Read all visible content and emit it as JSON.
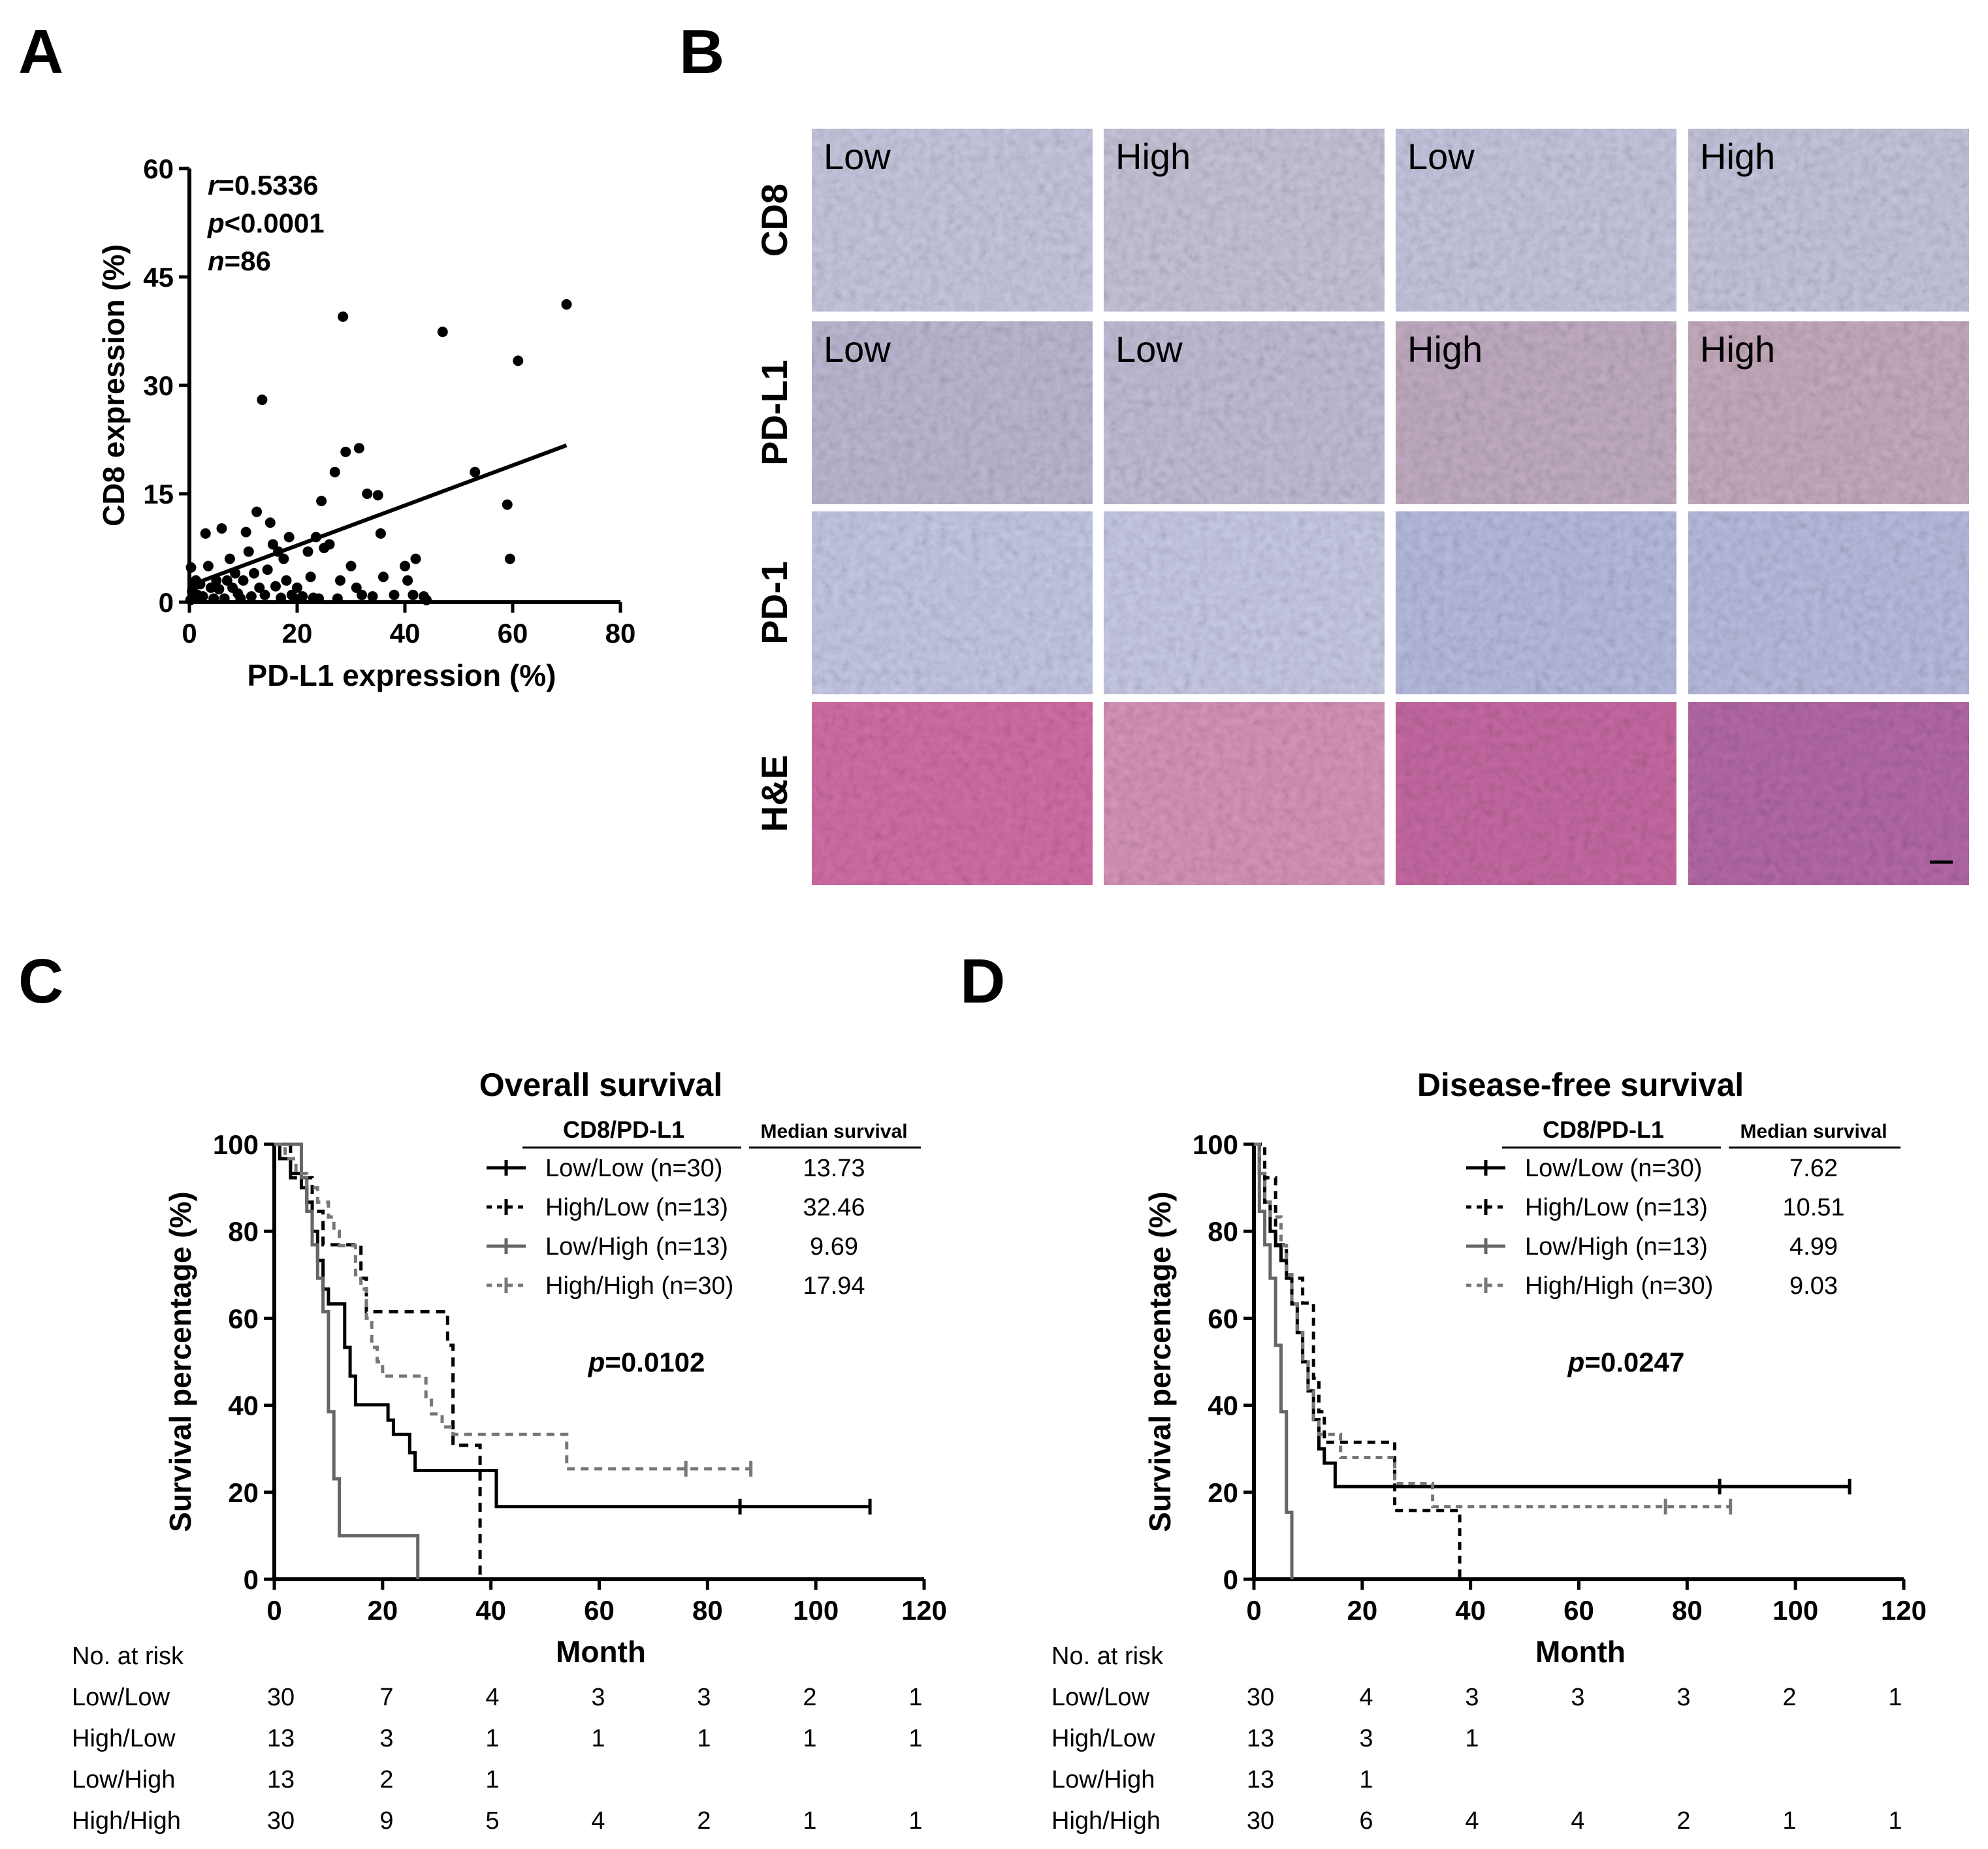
{
  "panels": {
    "a": "A",
    "b": "B",
    "c": "C",
    "d": "D"
  },
  "panel_b": {
    "rows": [
      "CD8",
      "PD-L1",
      "PD-1",
      "H&E"
    ],
    "tile_labels": [
      [
        "Low",
        "High",
        "Low",
        "High"
      ],
      [
        "Low",
        "Low",
        "High",
        "High"
      ]
    ]
  },
  "chart_data": [
    {
      "id": "A",
      "type": "scatter",
      "xlabel": "PD-L1 expression (%)",
      "ylabel": "CD8 expression (%)",
      "xlim": [
        0,
        80
      ],
      "ylim": [
        0,
        60
      ],
      "xticks": [
        "0",
        "20",
        "40",
        "60",
        "80"
      ],
      "yticks": [
        "0",
        "15",
        "30",
        "45",
        "60"
      ],
      "stats": [
        {
          "sym": "r",
          "rest": "=0.5336"
        },
        {
          "sym": "p",
          "rest": "<0.0001"
        },
        {
          "sym": "n",
          "rest": "=86"
        }
      ],
      "points": [
        [
          0.2,
          0.3
        ],
        [
          0.5,
          1.5
        ],
        [
          0.8,
          2.2
        ],
        [
          0.3,
          4.8
        ],
        [
          1,
          0.5
        ],
        [
          1.2,
          3
        ],
        [
          1.5,
          1
        ],
        [
          2,
          2.5
        ],
        [
          2.5,
          0.8
        ],
        [
          3,
          9.5
        ],
        [
          3.5,
          5
        ],
        [
          4,
          2
        ],
        [
          4.5,
          0.5
        ],
        [
          5,
          3
        ],
        [
          5.5,
          1.8
        ],
        [
          6,
          10.2
        ],
        [
          6.5,
          0.5
        ],
        [
          7,
          3
        ],
        [
          7.5,
          6
        ],
        [
          8,
          2
        ],
        [
          8.5,
          4
        ],
        [
          9,
          1.2
        ],
        [
          9.5,
          0.5
        ],
        [
          10,
          3
        ],
        [
          10.5,
          9.7
        ],
        [
          11,
          7
        ],
        [
          11.5,
          0.8
        ],
        [
          12,
          4
        ],
        [
          12.5,
          12.5
        ],
        [
          13,
          2
        ],
        [
          13.5,
          28
        ],
        [
          14,
          1
        ],
        [
          14.5,
          4.5
        ],
        [
          15,
          11
        ],
        [
          15.5,
          8
        ],
        [
          16,
          2.2
        ],
        [
          16.5,
          7
        ],
        [
          17,
          0.6
        ],
        [
          17.5,
          6
        ],
        [
          18,
          3
        ],
        [
          18.5,
          9
        ],
        [
          19,
          1
        ],
        [
          19.5,
          0.5
        ],
        [
          20,
          2
        ],
        [
          21,
          0.8
        ],
        [
          22,
          7
        ],
        [
          22.5,
          3.5
        ],
        [
          23,
          0.6
        ],
        [
          23.5,
          9
        ],
        [
          24,
          0.5
        ],
        [
          24.5,
          14
        ],
        [
          25,
          7.5
        ],
        [
          26,
          8
        ],
        [
          27,
          18
        ],
        [
          27.5,
          0.5
        ],
        [
          28,
          3
        ],
        [
          28.5,
          39.5
        ],
        [
          29,
          20.8
        ],
        [
          30,
          5
        ],
        [
          31,
          2
        ],
        [
          31.5,
          21.3
        ],
        [
          32,
          1
        ],
        [
          33,
          15
        ],
        [
          34,
          0.8
        ],
        [
          35,
          14.8
        ],
        [
          35.5,
          9.5
        ],
        [
          36,
          3.5
        ],
        [
          38,
          1
        ],
        [
          40,
          5
        ],
        [
          40.5,
          3
        ],
        [
          41.5,
          1
        ],
        [
          42,
          6
        ],
        [
          43.5,
          0.8
        ],
        [
          44,
          0.3
        ],
        [
          47,
          37.4
        ],
        [
          53,
          18
        ],
        [
          59,
          13.5
        ],
        [
          59.5,
          6
        ],
        [
          61,
          33.4
        ],
        [
          70,
          41.2
        ]
      ],
      "fit": {
        "x": [
          0,
          70
        ],
        "y": [
          2.3,
          21.7
        ]
      }
    },
    {
      "id": "C",
      "type": "line",
      "title": "Overall survival",
      "xlabel": "Month",
      "ylabel": "Survival percentage (%)",
      "xlim": [
        0,
        120
      ],
      "ylim": [
        0,
        100
      ],
      "xticks": [
        "0",
        "20",
        "40",
        "60",
        "80",
        "100",
        "120"
      ],
      "yticks": [
        "0",
        "20",
        "40",
        "60",
        "80",
        "100"
      ],
      "legend_header": "CD8/PD-L1",
      "median_header": "Median survival",
      "p_sym": "p",
      "p_rest": "=0.0102",
      "series": [
        {
          "name": "Low/Low (n=30)",
          "median": "13.73",
          "color": "#000000",
          "dash": "",
          "steps": [
            [
              0,
              100
            ],
            [
              1,
              96.7
            ],
            [
              3,
              93.3
            ],
            [
              5,
              90
            ],
            [
              6,
              86.7
            ],
            [
              7,
              80
            ],
            [
              8,
              73.3
            ],
            [
              9,
              66.7
            ],
            [
              10,
              63.3
            ],
            [
              13,
              53.3
            ],
            [
              14,
              46.7
            ],
            [
              15,
              40.1
            ],
            [
              21,
              36.6
            ],
            [
              22,
              33.3
            ],
            [
              25,
              29.1
            ],
            [
              26,
              25
            ],
            [
              41,
              16.7
            ],
            [
              110,
              16.7
            ]
          ],
          "censors": [
            [
              86,
              16.7
            ],
            [
              110,
              16.7
            ]
          ]
        },
        {
          "name": "High/Low (n=13)",
          "median": "32.46",
          "color": "#000000",
          "dash": "14,10",
          "steps": [
            [
              0,
              100
            ],
            [
              3,
              92.3
            ],
            [
              7,
              84.6
            ],
            [
              9,
              76.9
            ],
            [
              16,
              69.2
            ],
            [
              17,
              61.5
            ],
            [
              32,
              53.8
            ],
            [
              33,
              30.8
            ],
            [
              38,
              0
            ],
            [
              38.5,
              0
            ]
          ],
          "censors": []
        },
        {
          "name": "Low/High (n=13)",
          "median": "9.69",
          "color": "#666666",
          "dash": "",
          "steps": [
            [
              0,
              100
            ],
            [
              5,
              92.3
            ],
            [
              6,
              84.6
            ],
            [
              7,
              76.9
            ],
            [
              8,
              69.2
            ],
            [
              9,
              61.5
            ],
            [
              10,
              38.5
            ],
            [
              11,
              23.1
            ],
            [
              12,
              10
            ],
            [
              26,
              10
            ],
            [
              26.5,
              0
            ]
          ],
          "censors": []
        },
        {
          "name": "High/High (n=30)",
          "median": "17.94",
          "color": "#777777",
          "dash": "12,9",
          "steps": [
            [
              0,
              100
            ],
            [
              2,
              96.7
            ],
            [
              4,
              93.3
            ],
            [
              6,
              90
            ],
            [
              8,
              86.7
            ],
            [
              10,
              83.3
            ],
            [
              11,
              80
            ],
            [
              12,
              76.7
            ],
            [
              15,
              70
            ],
            [
              16,
              66.7
            ],
            [
              17,
              60
            ],
            [
              18,
              53.3
            ],
            [
              19,
              50
            ],
            [
              20,
              46.7
            ],
            [
              28,
              42
            ],
            [
              29,
              38
            ],
            [
              31,
              35
            ],
            [
              33,
              33.3
            ],
            [
              54,
              25.4
            ],
            [
              88,
              25.4
            ]
          ],
          "censors": [
            [
              76,
              25.4
            ],
            [
              88,
              25.4
            ]
          ]
        }
      ],
      "risk": {
        "header": "No. at risk",
        "rows": [
          {
            "label": "Low/Low",
            "values": [
              "30",
              "7",
              "4",
              "3",
              "3",
              "2",
              "1"
            ]
          },
          {
            "label": "High/Low",
            "values": [
              "13",
              "3",
              "1",
              "1",
              "1",
              "1",
              "1"
            ]
          },
          {
            "label": "Low/High",
            "values": [
              "13",
              "2",
              "1",
              "",
              "",
              "",
              ""
            ]
          },
          {
            "label": "High/High",
            "values": [
              "30",
              "9",
              "5",
              "4",
              "2",
              "1",
              "1"
            ]
          }
        ]
      }
    },
    {
      "id": "D",
      "type": "line",
      "title": "Disease-free survival",
      "xlabel": "Month",
      "ylabel": "Survival percentage (%)",
      "xlim": [
        0,
        120
      ],
      "ylim": [
        0,
        100
      ],
      "xticks": [
        "0",
        "20",
        "40",
        "60",
        "80",
        "100",
        "120"
      ],
      "yticks": [
        "0",
        "20",
        "40",
        "60",
        "80",
        "100"
      ],
      "legend_header": "CD8/PD-L1",
      "median_header": "Median survival",
      "p_sym": "p",
      "p_rest": "=0.0247",
      "series": [
        {
          "name": "Low/Low (n=30)",
          "median": "7.62",
          "color": "#000000",
          "dash": "",
          "steps": [
            [
              0,
              100
            ],
            [
              1,
              93.3
            ],
            [
              2,
              86.7
            ],
            [
              3,
              80
            ],
            [
              4,
              76.7
            ],
            [
              5,
              73.3
            ],
            [
              6,
              70
            ],
            [
              7,
              63.3
            ],
            [
              8,
              56.7
            ],
            [
              9,
              50
            ],
            [
              10,
              43.3
            ],
            [
              11,
              36.7
            ],
            [
              12,
              30
            ],
            [
              13,
              26.7
            ],
            [
              15,
              21.3
            ],
            [
              110,
              21.3
            ]
          ],
          "censors": [
            [
              86,
              21.3
            ],
            [
              110,
              21.3
            ]
          ]
        },
        {
          "name": "High/Low (n=13)",
          "median": "10.51",
          "color": "#000000",
          "dash": "12,9",
          "steps": [
            [
              0,
              100
            ],
            [
              2,
              92.3
            ],
            [
              4,
              76.9
            ],
            [
              6,
              69.2
            ],
            [
              9,
              63.5
            ],
            [
              11,
              46.2
            ],
            [
              12,
              38.5
            ],
            [
              13,
              31.5
            ],
            [
              26,
              15.8
            ],
            [
              38,
              0
            ],
            [
              38.5,
              0
            ]
          ],
          "censors": []
        },
        {
          "name": "Low/High (n=13)",
          "median": "4.99",
          "color": "#666666",
          "dash": "",
          "steps": [
            [
              0,
              100
            ],
            [
              1,
              84.6
            ],
            [
              2,
              76.9
            ],
            [
              3,
              69.2
            ],
            [
              4,
              53.8
            ],
            [
              5,
              38.5
            ],
            [
              6,
              15.4
            ],
            [
              7,
              0
            ]
          ],
          "censors": []
        },
        {
          "name": "High/High (n=30)",
          "median": "9.03",
          "color": "#777777",
          "dash": "10,8",
          "steps": [
            [
              0,
              100
            ],
            [
              1,
              93.3
            ],
            [
              2,
              86.7
            ],
            [
              3,
              83.3
            ],
            [
              5,
              76.7
            ],
            [
              6,
              70
            ],
            [
              7,
              63.3
            ],
            [
              8,
              56.7
            ],
            [
              9,
              50
            ],
            [
              10,
              43.3
            ],
            [
              11,
              36.7
            ],
            [
              12,
              33.3
            ],
            [
              16,
              28
            ],
            [
              26,
              22
            ],
            [
              33,
              16.7
            ],
            [
              88,
              16.7
            ]
          ],
          "censors": [
            [
              76,
              16.7
            ],
            [
              88,
              16.7
            ]
          ]
        }
      ],
      "risk": {
        "header": "No. at risk",
        "rows": [
          {
            "label": "Low/Low",
            "values": [
              "30",
              "4",
              "3",
              "3",
              "3",
              "2",
              "1"
            ]
          },
          {
            "label": "High/Low",
            "values": [
              "13",
              "3",
              "1",
              "",
              "",
              "",
              ""
            ]
          },
          {
            "label": "Low/High",
            "values": [
              "13",
              "1",
              "",
              "",
              "",
              "",
              ""
            ]
          },
          {
            "label": "High/High",
            "values": [
              "30",
              "6",
              "4",
              "4",
              "2",
              "1",
              "1"
            ]
          }
        ]
      }
    }
  ]
}
